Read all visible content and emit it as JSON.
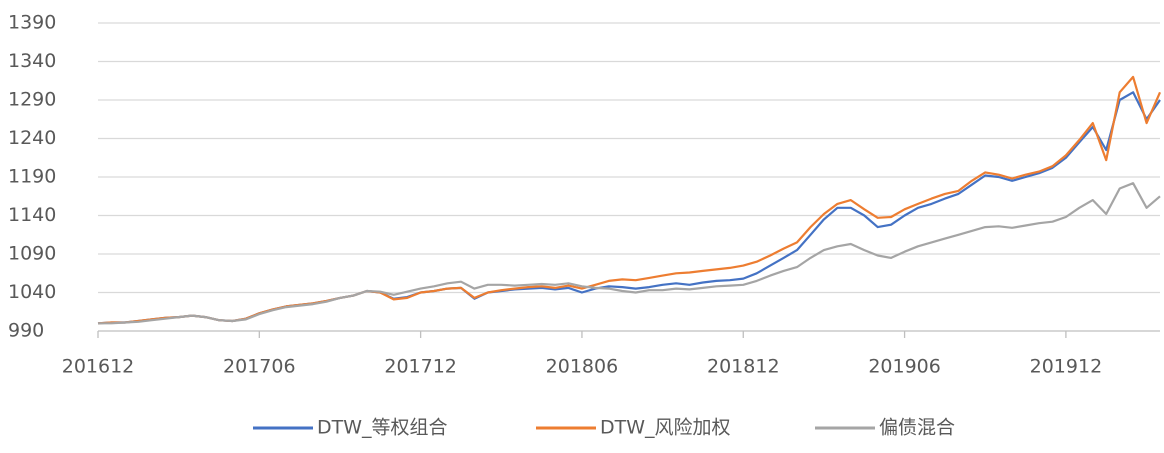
{
  "chart_data": {
    "type": "line",
    "categories": [
      "201612",
      null,
      null,
      null,
      null,
      null,
      null,
      null,
      null,
      null,
      null,
      null,
      "201706",
      null,
      null,
      null,
      null,
      null,
      null,
      null,
      null,
      null,
      null,
      null,
      "201712",
      null,
      null,
      null,
      null,
      null,
      null,
      null,
      null,
      null,
      null,
      null,
      "201806",
      null,
      null,
      null,
      null,
      null,
      null,
      null,
      null,
      null,
      null,
      null,
      "201812",
      null,
      null,
      null,
      null,
      null,
      null,
      null,
      null,
      null,
      null,
      null,
      "201906",
      null,
      null,
      null,
      null,
      null,
      null,
      null,
      null,
      null,
      null,
      null,
      "201912",
      null,
      null,
      null,
      null,
      null,
      null,
      null
    ],
    "series": [
      {
        "name": "DTW_等权组合",
        "color": "#4472c4",
        "values": [
          1000,
          1001,
          1001,
          1003,
          1005,
          1007,
          1008,
          1010,
          1008,
          1004,
          1003,
          1006,
          1013,
          1018,
          1022,
          1024,
          1026,
          1029,
          1033,
          1036,
          1042,
          1040,
          1032,
          1034,
          1040,
          1042,
          1045,
          1046,
          1032,
          1040,
          1042,
          1044,
          1045,
          1046,
          1044,
          1046,
          1040,
          1045,
          1048,
          1047,
          1045,
          1047,
          1050,
          1052,
          1050,
          1053,
          1055,
          1056,
          1058,
          1065,
          1075,
          1085,
          1095,
          1115,
          1135,
          1150,
          1150,
          1140,
          1125,
          1128,
          1140,
          1150,
          1155,
          1162,
          1168,
          1180,
          1192,
          1190,
          1185,
          1190,
          1195,
          1202,
          1215,
          1235,
          1255,
          1225,
          1290,
          1300,
          1265,
          1290
        ]
      },
      {
        "name": "DTW_风险加权",
        "color": "#ed7d31",
        "values": [
          1000,
          1001,
          1001,
          1003,
          1005,
          1007,
          1008,
          1010,
          1008,
          1004,
          1003,
          1006,
          1013,
          1018,
          1022,
          1024,
          1026,
          1029,
          1033,
          1036,
          1042,
          1040,
          1031,
          1033,
          1040,
          1042,
          1045,
          1046,
          1033,
          1040,
          1043,
          1045,
          1047,
          1048,
          1046,
          1049,
          1045,
          1050,
          1055,
          1057,
          1056,
          1059,
          1062,
          1065,
          1066,
          1068,
          1070,
          1072,
          1075,
          1080,
          1088,
          1097,
          1105,
          1125,
          1142,
          1155,
          1160,
          1148,
          1137,
          1138,
          1148,
          1155,
          1162,
          1168,
          1172,
          1185,
          1196,
          1193,
          1188,
          1193,
          1197,
          1204,
          1218,
          1238,
          1260,
          1212,
          1300,
          1320,
          1260,
          1300
        ]
      },
      {
        "name": "偏债混合",
        "color": "#a5a5a5",
        "values": [
          1000,
          1000,
          1001,
          1002,
          1004,
          1006,
          1008,
          1010,
          1008,
          1004,
          1003,
          1005,
          1012,
          1017,
          1021,
          1023,
          1025,
          1028,
          1033,
          1036,
          1042,
          1041,
          1037,
          1041,
          1045,
          1048,
          1052,
          1054,
          1045,
          1050,
          1050,
          1049,
          1050,
          1051,
          1050,
          1052,
          1048,
          1046,
          1045,
          1042,
          1040,
          1043,
          1043,
          1045,
          1044,
          1046,
          1048,
          1049,
          1050,
          1055,
          1062,
          1068,
          1073,
          1085,
          1095,
          1100,
          1103,
          1095,
          1088,
          1085,
          1093,
          1100,
          1105,
          1110,
          1115,
          1120,
          1125,
          1126,
          1124,
          1127,
          1130,
          1132,
          1138,
          1150,
          1160,
          1142,
          1175,
          1182,
          1150,
          1165
        ]
      }
    ],
    "ylim": [
      990,
      1390
    ],
    "yticks": [
      990,
      1040,
      1090,
      1140,
      1190,
      1240,
      1290,
      1340,
      1390
    ],
    "grid": true
  }
}
